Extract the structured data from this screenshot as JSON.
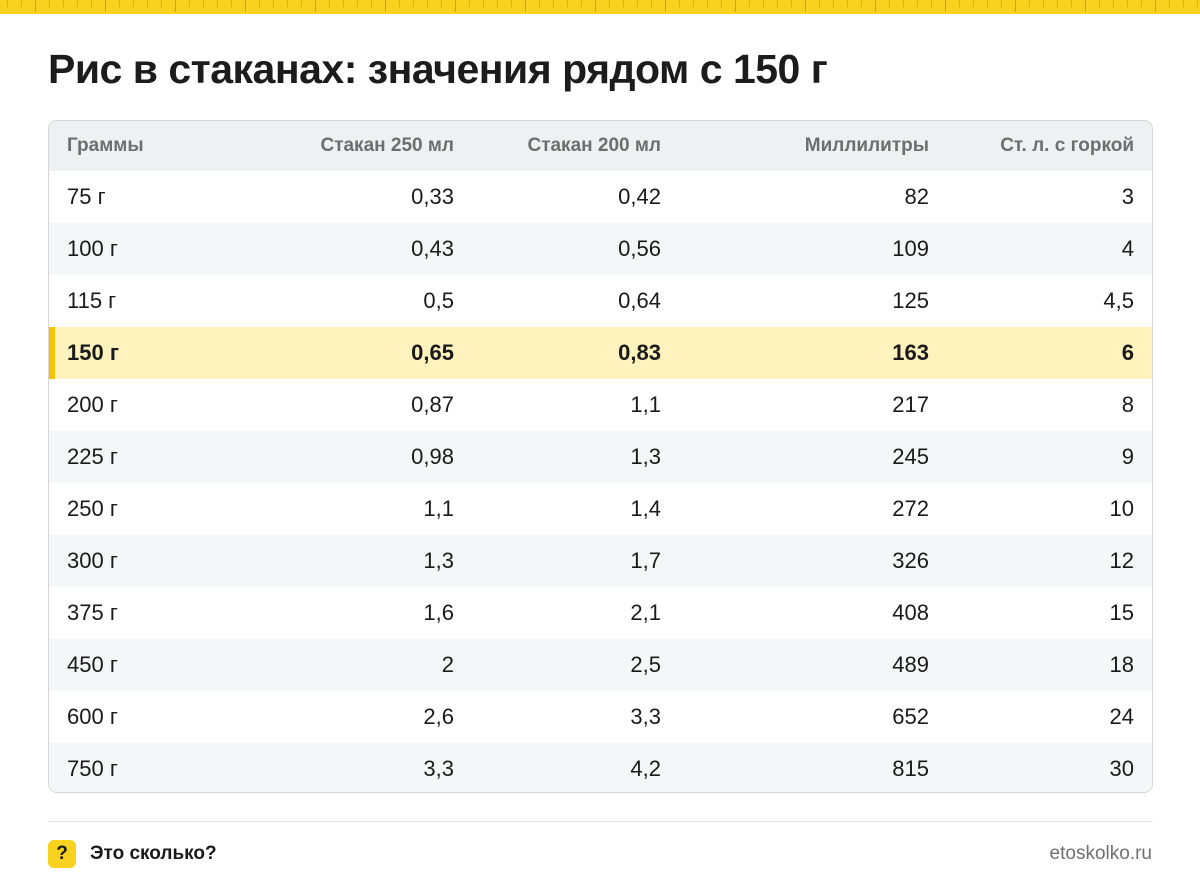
{
  "title": "Рис в стаканах: значения рядом с 150 г",
  "table": {
    "headers": [
      "Граммы",
      "Стакан 250 мл",
      "Стакан 200 мл",
      "Миллилитры",
      "Ст. л. с горкой"
    ],
    "highlight_row": 3,
    "rows": [
      [
        "75 г",
        "0,33",
        "0,42",
        "82",
        "3"
      ],
      [
        "100 г",
        "0,43",
        "0,56",
        "109",
        "4"
      ],
      [
        "115 г",
        "0,5",
        "0,64",
        "125",
        "4,5"
      ],
      [
        "150 г",
        "0,65",
        "0,83",
        "163",
        "6"
      ],
      [
        "200 г",
        "0,87",
        "1,1",
        "217",
        "8"
      ],
      [
        "225 г",
        "0,98",
        "1,3",
        "245",
        "9"
      ],
      [
        "250 г",
        "1,1",
        "1,4",
        "272",
        "10"
      ],
      [
        "300 г",
        "1,3",
        "1,7",
        "326",
        "12"
      ],
      [
        "375 г",
        "1,6",
        "2,1",
        "408",
        "15"
      ],
      [
        "450 г",
        "2",
        "2,5",
        "489",
        "18"
      ],
      [
        "600 г",
        "2,6",
        "3,3",
        "652",
        "24"
      ],
      [
        "750 г",
        "3,3",
        "4,2",
        "815",
        "30"
      ]
    ]
  },
  "footer": {
    "badge_glyph": "?",
    "brand": "Это сколько?",
    "url": "etoskolko.ru"
  },
  "colors": {
    "accent": "#f8d21e",
    "highlight_bg": "#fff2bc",
    "highlight_bar": "#f5c400"
  }
}
